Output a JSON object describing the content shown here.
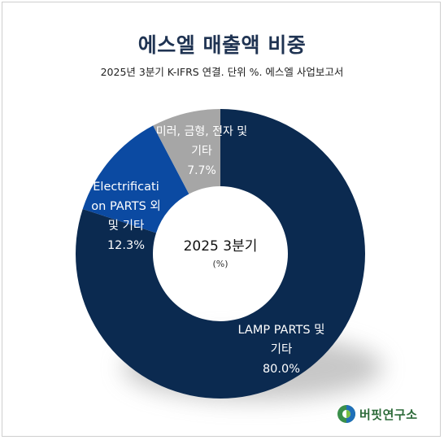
{
  "header": {
    "title": "에스엘 매출액 비중",
    "subtitle": "2025년 3분기 K-IFRS 연결. 단위 %. 에스엘 사업보고서"
  },
  "chart_data": {
    "type": "pie",
    "style": "donut",
    "center_label": "2025 3분기",
    "center_sublabel": "(%)",
    "categories": [
      "LAMP PARTS 및 기타",
      "Electrification PARTS 외 및 기타",
      "미러, 금형, 전자 및 기타"
    ],
    "values": [
      80.0,
      12.3,
      7.7
    ],
    "value_labels": [
      "80.0%",
      "12.3%",
      "7.7%"
    ],
    "colors": [
      "#0b2a50",
      "#0b4aa2",
      "#a6a6a6"
    ],
    "slice_labels": [
      [
        "LAMP PARTS 및",
        "기타",
        "80.0%"
      ],
      [
        "Electrificati",
        "on PARTS 외",
        "및 기타",
        "12.3%"
      ],
      [
        "미러, 금형, 전자 및",
        "기타",
        "7.7%"
      ]
    ]
  },
  "logo": {
    "text": "버핏연구소",
    "icon": "buffett-lab-logo-icon"
  }
}
